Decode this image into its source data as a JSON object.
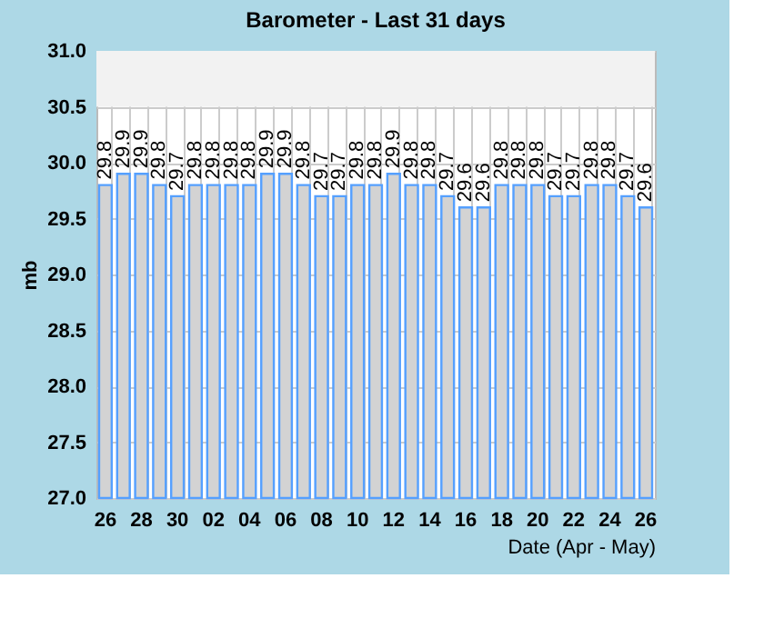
{
  "chart_data": {
    "type": "bar",
    "title": "Barometer - Last 31 days",
    "xlabel": "Date (Apr - May)",
    "ylabel": "mb",
    "categories": [
      "26",
      null,
      "28",
      null,
      "30",
      null,
      "02",
      null,
      "04",
      null,
      "06",
      null,
      "08",
      null,
      "10",
      null,
      "12",
      null,
      "14",
      null,
      "16",
      null,
      "18",
      null,
      "20",
      null,
      "22",
      null,
      "24",
      null,
      "26"
    ],
    "series": [
      {
        "color": "#d3d3d3",
        "values": [
          29.8,
          29.9,
          29.9,
          29.8,
          29.7,
          29.8,
          29.8,
          29.8,
          29.8,
          29.9,
          29.9,
          29.8,
          29.7,
          29.7,
          29.8,
          29.8,
          29.9,
          29.8,
          29.8,
          29.7,
          29.6,
          29.6,
          29.8,
          29.8,
          29.8,
          29.7,
          29.7,
          29.8,
          29.8,
          29.7,
          29.6
        ]
      }
    ],
    "data_labels": true,
    "ylim": [
      27.0,
      31.0
    ],
    "yticks": [
      {
        "value": 27,
        "label": "27.0"
      },
      27.5,
      {
        "value": 28,
        "label": "28.0"
      },
      28.5,
      {
        "value": 29,
        "label": "29.0"
      },
      29.5,
      {
        "value": 30,
        "label": "30.0"
      },
      30.5,
      {
        "value": 31,
        "label": "31.0"
      }
    ],
    "bands": [
      {
        "axis": "y",
        "from": 30.5,
        "to": 31.0,
        "color": "#f2f2f2"
      }
    ],
    "grid": true
  }
}
